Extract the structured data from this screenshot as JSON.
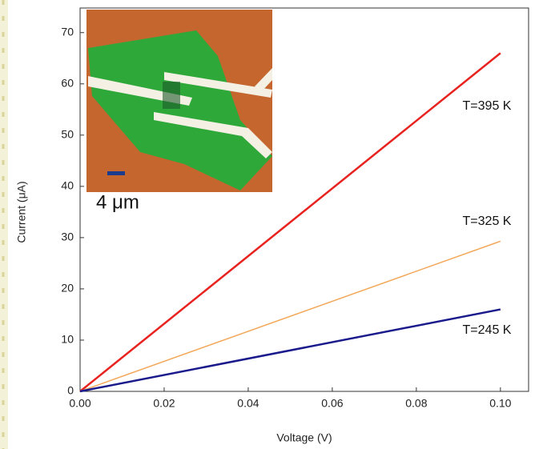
{
  "chart_data": {
    "type": "line",
    "x_label": "Voltage (V)",
    "y_label": "Current (μA)",
    "x": [
      0,
      0.1
    ],
    "series": [
      {
        "name": "T=395 K",
        "color": "#e8231f",
        "values": [
          0,
          66
        ]
      },
      {
        "name": "T=325 K",
        "color": "#f4a85a",
        "values": [
          0,
          29.3
        ]
      },
      {
        "name": "T=245 K",
        "color": "#1a1a8c",
        "values": [
          0,
          16
        ]
      }
    ],
    "xlim": [
      0,
      0.1067
    ],
    "ylim": [
      0,
      74.8
    ],
    "xticks": [
      {
        "value": 0,
        "label": "0.00"
      },
      {
        "value": 0.02,
        "label": "0.02"
      },
      {
        "value": 0.04,
        "label": "0.04"
      },
      {
        "value": 0.06,
        "label": "0.06"
      },
      {
        "value": 0.08,
        "label": "0.08"
      },
      {
        "value": 0.1,
        "label": "0.10"
      }
    ],
    "yticks": [
      0,
      10,
      20,
      30,
      40,
      50,
      60,
      70
    ],
    "annotations": [
      "4 μm"
    ]
  }
}
